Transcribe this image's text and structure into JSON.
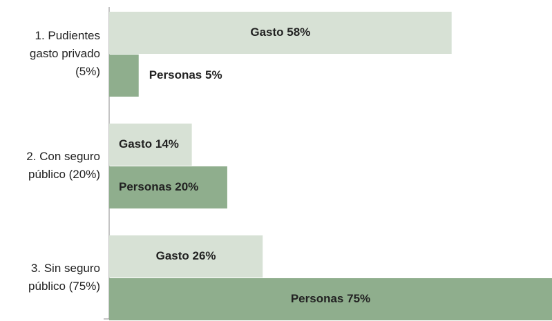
{
  "chart_data": {
    "type": "hbar",
    "categories": [
      "1. Pudientes gasto privado (5%)",
      "2. Con seguro público (20%)",
      "3. Sin seguro público (75%)"
    ],
    "series": [
      {
        "name": "Gasto",
        "color": "#d7e1d5",
        "values": [
          58,
          14,
          26
        ],
        "value_labels": [
          "Gasto 58%",
          "Gasto 14%",
          "Gasto 26%"
        ]
      },
      {
        "name": "Personas",
        "color": "#8fae8d",
        "values": [
          5,
          20,
          75
        ],
        "value_labels": [
          "Personas 5%",
          "Personas 20%",
          "Personas 75%"
        ]
      }
    ],
    "xlim": [
      0,
      75
    ]
  }
}
